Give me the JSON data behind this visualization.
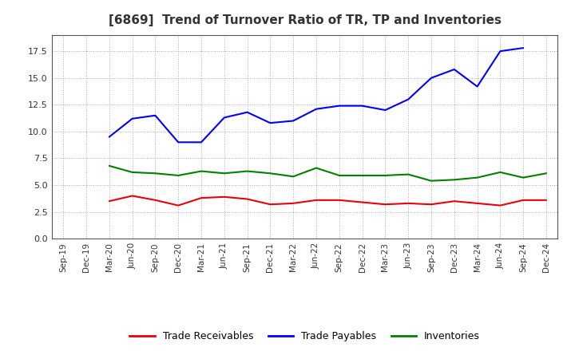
{
  "title": "[6869]  Trend of Turnover Ratio of TR, TP and Inventories",
  "x_labels": [
    "Sep-19",
    "Dec-19",
    "Mar-20",
    "Jun-20",
    "Sep-20",
    "Dec-20",
    "Mar-21",
    "Jun-21",
    "Sep-21",
    "Dec-21",
    "Mar-22",
    "Jun-22",
    "Sep-22",
    "Dec-22",
    "Mar-23",
    "Jun-23",
    "Sep-23",
    "Dec-23",
    "Mar-24",
    "Jun-24",
    "Sep-24",
    "Dec-24"
  ],
  "trade_receivables": [
    null,
    null,
    3.5,
    4.0,
    3.6,
    3.1,
    3.8,
    3.9,
    3.7,
    3.2,
    3.3,
    3.6,
    3.6,
    3.4,
    3.2,
    3.3,
    3.2,
    3.5,
    3.3,
    3.1,
    3.6,
    3.6
  ],
  "trade_payables": [
    null,
    null,
    9.5,
    11.2,
    11.5,
    9.0,
    9.0,
    11.3,
    11.8,
    10.8,
    11.0,
    12.1,
    12.4,
    12.4,
    12.0,
    13.0,
    15.0,
    15.8,
    14.2,
    17.5,
    17.8,
    null
  ],
  "inventories": [
    null,
    null,
    6.8,
    6.2,
    6.1,
    5.9,
    6.3,
    6.1,
    6.3,
    6.1,
    5.8,
    6.6,
    5.9,
    5.9,
    5.9,
    6.0,
    5.4,
    5.5,
    5.7,
    6.2,
    5.7,
    6.1
  ],
  "ylim": [
    0,
    19.0
  ],
  "yticks": [
    0.0,
    2.5,
    5.0,
    7.5,
    10.0,
    12.5,
    15.0,
    17.5
  ],
  "color_tr": "#e8000a",
  "color_tp": "#0000ff",
  "color_inv": "#008000",
  "background_color": "#ffffff",
  "grid_color": "#aaaaaa",
  "title_color": "#333333",
  "legend_labels": [
    "Trade Receivables",
    "Trade Payables",
    "Inventories"
  ]
}
